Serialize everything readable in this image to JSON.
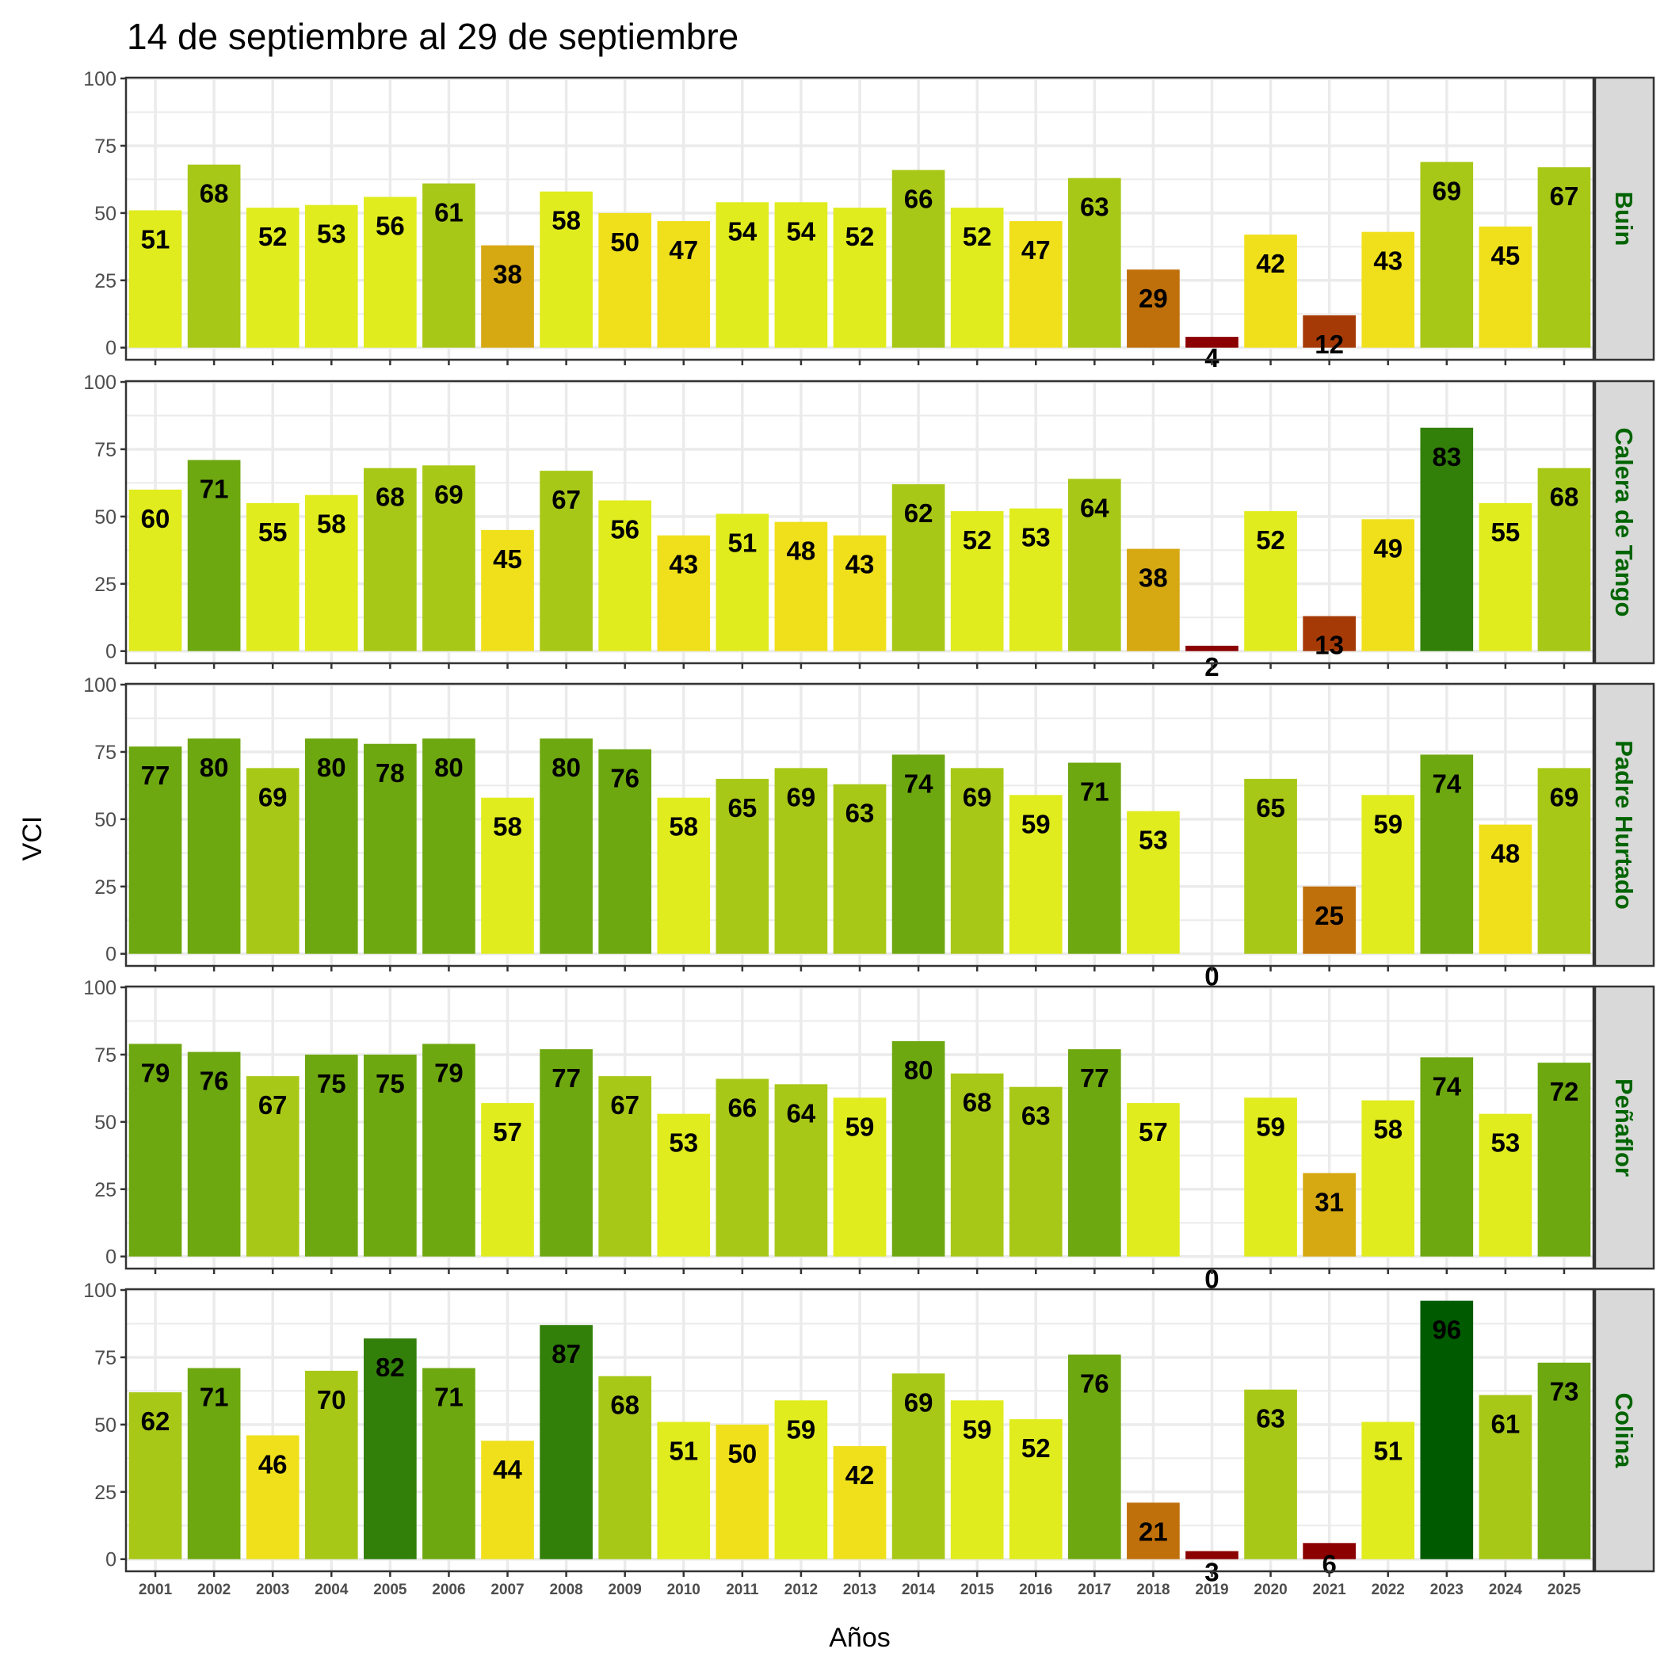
{
  "chart_data": {
    "type": "bar",
    "title": "14 de septiembre al 29 de septiembre",
    "xlabel": "Años",
    "ylabel": "VCI",
    "ylim": [
      0,
      100
    ],
    "yticks": [
      "0",
      "25",
      "50",
      "75",
      "100"
    ],
    "grid": true,
    "categories": [
      "2001",
      "2002",
      "2003",
      "2004",
      "2005",
      "2006",
      "2007",
      "2008",
      "2009",
      "2010",
      "2011",
      "2012",
      "2013",
      "2014",
      "2015",
      "2016",
      "2017",
      "2018",
      "2019",
      "2020",
      "2021",
      "2022",
      "2023",
      "2024",
      "2025"
    ],
    "color_bins": [
      {
        "max": 10,
        "color": "#8B0000"
      },
      {
        "max": 20,
        "color": "#A63A06"
      },
      {
        "max": 30,
        "color": "#C0700A"
      },
      {
        "max": 40,
        "color": "#D6A812"
      },
      {
        "max": 50,
        "color": "#F0E01C"
      },
      {
        "max": 60,
        "color": "#E0EC1E"
      },
      {
        "max": 70,
        "color": "#A8C818"
      },
      {
        "max": 80,
        "color": "#6EA810"
      },
      {
        "max": 90,
        "color": "#32800A"
      },
      {
        "max": 100,
        "color": "#005A00"
      }
    ],
    "series": [
      {
        "name": "Buin",
        "values": [
          51,
          68,
          52,
          53,
          56,
          61,
          38,
          58,
          50,
          47,
          54,
          54,
          52,
          66,
          52,
          47,
          63,
          29,
          4,
          42,
          12,
          43,
          69,
          45,
          67
        ]
      },
      {
        "name": "Calera de Tango",
        "values": [
          60,
          71,
          55,
          58,
          68,
          69,
          45,
          67,
          56,
          43,
          51,
          48,
          43,
          62,
          52,
          53,
          64,
          38,
          2,
          52,
          13,
          49,
          83,
          55,
          68
        ]
      },
      {
        "name": "Padre Hurtado",
        "values": [
          77,
          80,
          69,
          80,
          78,
          80,
          58,
          80,
          76,
          58,
          65,
          69,
          63,
          74,
          69,
          59,
          71,
          53,
          0,
          65,
          25,
          59,
          74,
          48,
          69
        ]
      },
      {
        "name": "Peñaflor",
        "values": [
          79,
          76,
          67,
          75,
          75,
          79,
          57,
          77,
          67,
          53,
          66,
          64,
          59,
          80,
          68,
          63,
          77,
          57,
          0,
          59,
          31,
          58,
          74,
          53,
          72
        ]
      },
      {
        "name": "Colina",
        "values": [
          62,
          71,
          46,
          70,
          82,
          71,
          44,
          87,
          68,
          51,
          50,
          59,
          42,
          69,
          59,
          52,
          76,
          21,
          3,
          63,
          6,
          51,
          96,
          61,
          73
        ]
      }
    ]
  }
}
